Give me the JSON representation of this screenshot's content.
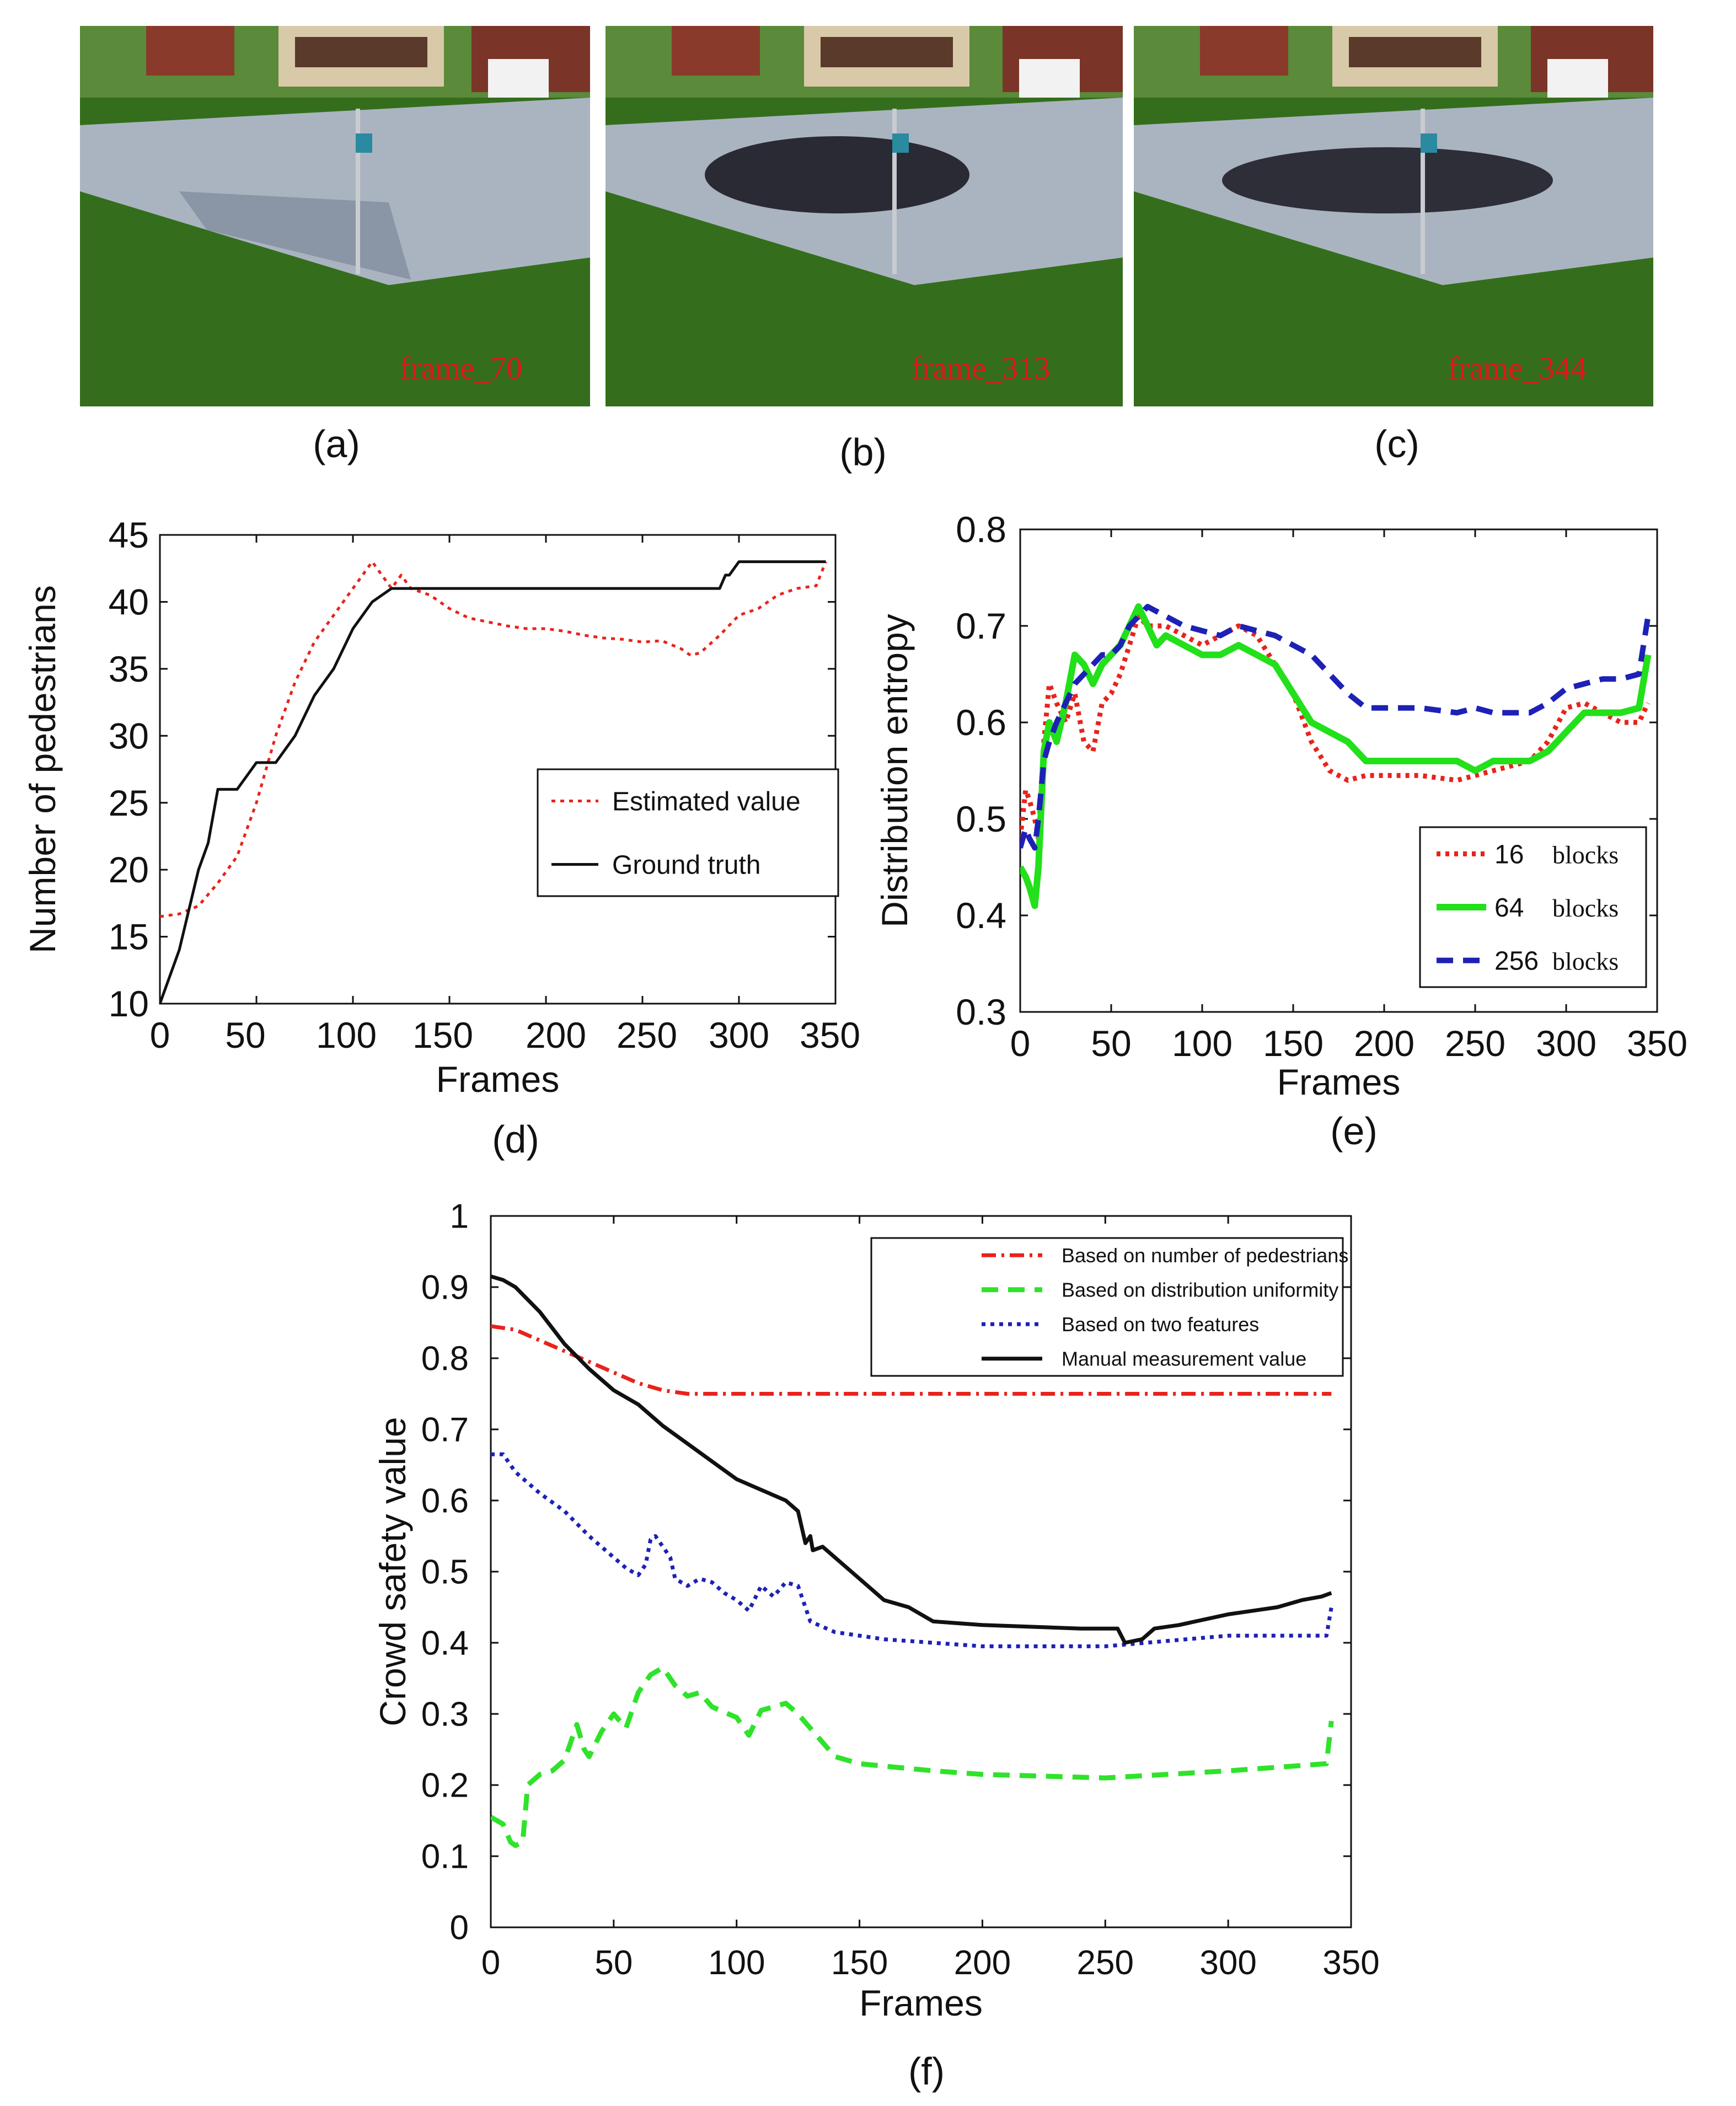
{
  "photos": [
    {
      "overlay": "frame_70",
      "caption": "(a)"
    },
    {
      "overlay": "frame_313",
      "caption": "(b)"
    },
    {
      "overlay": "frame_344",
      "caption": "(c)"
    }
  ],
  "colors": {
    "red": "#e8231c",
    "black": "#111111",
    "green": "#22e01a",
    "blue": "#1d21b6",
    "green_dash": "#2fe22a"
  },
  "chart_data": [
    {
      "id": "d",
      "type": "line",
      "caption": "(d)",
      "xlabel": "Frames",
      "ylabel": "Number of pedestrians",
      "xlim": [
        0,
        350
      ],
      "ylim": [
        10,
        45
      ],
      "xticks": [
        "0",
        "50",
        "100",
        "150",
        "200",
        "250",
        "300",
        "350"
      ],
      "yticks": [
        "10",
        "15",
        "20",
        "25",
        "30",
        "35",
        "40",
        "45"
      ],
      "legend_position": "center-right",
      "series": [
        {
          "name": "Estimated value",
          "style": "dotted",
          "color": "red",
          "x": [
            0,
            10,
            20,
            30,
            40,
            50,
            60,
            70,
            80,
            90,
            100,
            105,
            110,
            115,
            120,
            125,
            130,
            140,
            150,
            160,
            170,
            180,
            190,
            200,
            210,
            220,
            230,
            240,
            250,
            260,
            270,
            275,
            280,
            290,
            300,
            310,
            320,
            330,
            340,
            345
          ],
          "y": [
            16.5,
            16.7,
            17.3,
            19,
            21,
            25,
            30,
            34,
            37,
            39,
            41,
            42,
            43,
            42,
            41,
            42,
            41,
            40.5,
            39.5,
            38.8,
            38.5,
            38.2,
            38,
            38,
            37.8,
            37.5,
            37.3,
            37.2,
            37,
            37.1,
            36.5,
            36,
            36.2,
            37.5,
            39,
            39.5,
            40.5,
            41,
            41.2,
            43
          ]
        },
        {
          "name": "Ground truth",
          "style": "solid",
          "color": "black",
          "x": [
            0,
            5,
            10,
            15,
            20,
            25,
            30,
            40,
            50,
            60,
            70,
            80,
            90,
            100,
            110,
            120,
            130,
            140,
            180,
            240,
            280,
            290,
            293,
            295,
            300,
            345
          ],
          "y": [
            10,
            12,
            14,
            17,
            20,
            22,
            26,
            26,
            28,
            28,
            30,
            33,
            35,
            38,
            40,
            41,
            41,
            41,
            41,
            41,
            41,
            41,
            42,
            42,
            43,
            43
          ]
        }
      ]
    },
    {
      "id": "e",
      "type": "line",
      "caption": "(e)",
      "xlabel": "Frames",
      "ylabel": "Distribution entropy",
      "xlim": [
        0,
        350
      ],
      "ylim": [
        0.3,
        0.8
      ],
      "xticks": [
        "0",
        "50",
        "100",
        "150",
        "200",
        "250",
        "300",
        "350"
      ],
      "yticks": [
        "0.3",
        "0.4",
        "0.5",
        "0.6",
        "0.7",
        "0.8"
      ],
      "legend_position": "bottom-right",
      "series": [
        {
          "name": "16 blocks",
          "legend_num": "16",
          "legend_word": "blocks",
          "style": "dotted",
          "color": "red",
          "x": [
            0,
            3,
            5,
            8,
            10,
            13,
            16,
            20,
            25,
            30,
            35,
            40,
            45,
            50,
            55,
            60,
            65,
            70,
            80,
            90,
            100,
            110,
            120,
            130,
            140,
            150,
            160,
            170,
            180,
            190,
            200,
            220,
            240,
            250,
            260,
            270,
            280,
            290,
            300,
            310,
            320,
            330,
            340,
            345
          ],
          "y": [
            0.48,
            0.53,
            0.52,
            0.5,
            0.48,
            0.58,
            0.64,
            0.62,
            0.6,
            0.63,
            0.58,
            0.57,
            0.62,
            0.63,
            0.65,
            0.68,
            0.71,
            0.7,
            0.7,
            0.69,
            0.68,
            0.69,
            0.7,
            0.69,
            0.66,
            0.63,
            0.58,
            0.55,
            0.54,
            0.545,
            0.545,
            0.545,
            0.54,
            0.545,
            0.55,
            0.555,
            0.56,
            0.58,
            0.615,
            0.62,
            0.61,
            0.6,
            0.6,
            0.62
          ]
        },
        {
          "name": "64 blocks",
          "legend_num": "64",
          "legend_word": "blocks",
          "style": "solid",
          "color": "green",
          "x": [
            0,
            3,
            5,
            8,
            10,
            13,
            16,
            20,
            25,
            30,
            35,
            40,
            45,
            50,
            55,
            60,
            65,
            70,
            75,
            80,
            90,
            100,
            110,
            120,
            130,
            140,
            150,
            160,
            170,
            180,
            190,
            200,
            220,
            240,
            250,
            260,
            270,
            280,
            290,
            300,
            310,
            320,
            330,
            340,
            345
          ],
          "y": [
            0.45,
            0.44,
            0.43,
            0.41,
            0.45,
            0.57,
            0.6,
            0.58,
            0.62,
            0.67,
            0.66,
            0.64,
            0.66,
            0.67,
            0.68,
            0.7,
            0.72,
            0.7,
            0.68,
            0.69,
            0.68,
            0.67,
            0.67,
            0.68,
            0.67,
            0.66,
            0.63,
            0.6,
            0.59,
            0.58,
            0.56,
            0.56,
            0.56,
            0.56,
            0.55,
            0.56,
            0.56,
            0.56,
            0.57,
            0.59,
            0.61,
            0.61,
            0.61,
            0.615,
            0.67
          ]
        },
        {
          "name": "256 blocks",
          "legend_num": "256",
          "legend_word": "blocks",
          "style": "dashed",
          "color": "blue",
          "x": [
            0,
            3,
            5,
            8,
            10,
            13,
            16,
            20,
            25,
            30,
            35,
            40,
            45,
            50,
            55,
            60,
            65,
            70,
            75,
            80,
            90,
            100,
            110,
            120,
            130,
            140,
            150,
            160,
            170,
            180,
            190,
            200,
            220,
            240,
            250,
            260,
            270,
            280,
            290,
            300,
            310,
            320,
            330,
            340,
            345
          ],
          "y": [
            0.47,
            0.49,
            0.48,
            0.47,
            0.5,
            0.56,
            0.58,
            0.6,
            0.62,
            0.64,
            0.65,
            0.66,
            0.67,
            0.67,
            0.68,
            0.7,
            0.71,
            0.72,
            0.715,
            0.71,
            0.7,
            0.695,
            0.69,
            0.7,
            0.695,
            0.69,
            0.68,
            0.67,
            0.65,
            0.63,
            0.615,
            0.615,
            0.615,
            0.61,
            0.615,
            0.61,
            0.61,
            0.61,
            0.62,
            0.635,
            0.64,
            0.645,
            0.645,
            0.65,
            0.71
          ]
        }
      ]
    },
    {
      "id": "f",
      "type": "line",
      "caption": "(f)",
      "xlabel": "Frames",
      "ylabel": "Crowd safety value",
      "xlim": [
        0,
        350
      ],
      "ylim": [
        0,
        1
      ],
      "xticks": [
        "0",
        "50",
        "100",
        "150",
        "200",
        "250",
        "300",
        "350"
      ],
      "yticks": [
        "0",
        "0.1",
        "0.2",
        "0.3",
        "0.4",
        "0.5",
        "0.6",
        "0.7",
        "0.8",
        "0.9",
        "1"
      ],
      "legend_position": "top-right",
      "series": [
        {
          "name": "Based on number of pedestrians",
          "style": "dashdot",
          "color": "red",
          "x": [
            0,
            10,
            20,
            30,
            40,
            50,
            60,
            70,
            80,
            90,
            100,
            150,
            200,
            250,
            300,
            342
          ],
          "y": [
            0.845,
            0.84,
            0.825,
            0.81,
            0.795,
            0.78,
            0.765,
            0.755,
            0.75,
            0.75,
            0.75,
            0.75,
            0.75,
            0.75,
            0.75,
            0.75
          ]
        },
        {
          "name": "Based on distribution uniformity",
          "style": "dashed",
          "color": "green_dash",
          "x": [
            0,
            5,
            8,
            10,
            13,
            15,
            20,
            25,
            30,
            35,
            38,
            40,
            45,
            50,
            55,
            60,
            65,
            70,
            75,
            80,
            85,
            90,
            100,
            105,
            110,
            115,
            120,
            125,
            130,
            140,
            150,
            180,
            200,
            250,
            300,
            340,
            342
          ],
          "y": [
            0.155,
            0.145,
            0.12,
            0.115,
            0.12,
            0.2,
            0.215,
            0.22,
            0.235,
            0.285,
            0.25,
            0.24,
            0.275,
            0.3,
            0.28,
            0.33,
            0.355,
            0.365,
            0.34,
            0.325,
            0.33,
            0.31,
            0.295,
            0.27,
            0.305,
            0.31,
            0.315,
            0.3,
            0.28,
            0.24,
            0.23,
            0.22,
            0.215,
            0.21,
            0.22,
            0.23,
            0.29
          ]
        },
        {
          "name": "Based on two features",
          "style": "dotted",
          "color": "blue",
          "x": [
            0,
            5,
            10,
            20,
            30,
            40,
            50,
            55,
            60,
            63,
            65,
            67,
            70,
            73,
            75,
            80,
            85,
            90,
            95,
            100,
            105,
            110,
            115,
            120,
            125,
            130,
            140,
            150,
            160,
            180,
            200,
            250,
            300,
            340,
            342
          ],
          "y": [
            0.665,
            0.665,
            0.64,
            0.61,
            0.585,
            0.55,
            0.52,
            0.505,
            0.495,
            0.51,
            0.545,
            0.55,
            0.535,
            0.52,
            0.49,
            0.48,
            0.49,
            0.485,
            0.47,
            0.46,
            0.445,
            0.48,
            0.465,
            0.485,
            0.48,
            0.43,
            0.415,
            0.41,
            0.405,
            0.4,
            0.395,
            0.395,
            0.41,
            0.41,
            0.45
          ]
        },
        {
          "name": "Manual measurement value",
          "style": "solid",
          "color": "black",
          "x": [
            0,
            5,
            10,
            20,
            30,
            40,
            50,
            60,
            70,
            80,
            90,
            100,
            110,
            120,
            125,
            128,
            130,
            131,
            135,
            140,
            150,
            160,
            170,
            180,
            200,
            240,
            255,
            258,
            265,
            270,
            280,
            300,
            320,
            330,
            338,
            342
          ],
          "y": [
            0.915,
            0.91,
            0.9,
            0.865,
            0.82,
            0.785,
            0.755,
            0.735,
            0.705,
            0.68,
            0.655,
            0.63,
            0.615,
            0.6,
            0.585,
            0.54,
            0.55,
            0.53,
            0.535,
            0.52,
            0.49,
            0.46,
            0.45,
            0.43,
            0.425,
            0.42,
            0.42,
            0.4,
            0.405,
            0.42,
            0.425,
            0.44,
            0.45,
            0.46,
            0.465,
            0.47
          ]
        }
      ]
    }
  ]
}
